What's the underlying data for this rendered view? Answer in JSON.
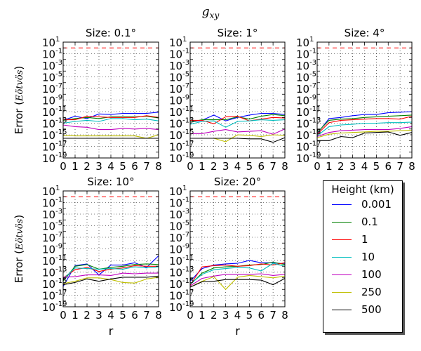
{
  "figure_title": "g_xy",
  "ylabel_text": "Error (",
  "ylabel_unit": "Eötvös",
  "ylabel_close": ")",
  "legend": {
    "title": "Height (km)",
    "items": [
      {
        "label": "0.001",
        "color": "#0000ff"
      },
      {
        "label": "0.1",
        "color": "#008000"
      },
      {
        "label": "1",
        "color": "#ff0000"
      },
      {
        "label": "10",
        "color": "#00bfbf"
      },
      {
        "label": "100",
        "color": "#bf00bf"
      },
      {
        "label": "250",
        "color": "#bfbf00"
      },
      {
        "label": "500",
        "color": "#000000"
      }
    ]
  },
  "threshold": {
    "value": 1,
    "color": "#ff0000",
    "style": "dashed"
  },
  "chart_data": [
    {
      "type": "line",
      "title": "Size: 0.1°",
      "xlabel": "",
      "ylabel": "Error (Eötvös)",
      "x": [
        0,
        1,
        2,
        3,
        4,
        5,
        6,
        7,
        8
      ],
      "xlim": [
        0,
        8
      ],
      "ylim_exp": [
        -19,
        1
      ],
      "yscale": "log",
      "grid": true,
      "series": [
        {
          "name": "0.001",
          "log10": [
            -12.5,
            -11.8,
            -12.2,
            -11.4,
            -11.5,
            -11.3,
            -11.3,
            -11.3,
            -11.1
          ]
        },
        {
          "name": "0.1",
          "log10": [
            -12.5,
            -12.2,
            -12.0,
            -12.2,
            -11.9,
            -11.9,
            -11.9,
            -11.8,
            -12.1
          ]
        },
        {
          "name": "1",
          "log10": [
            -12.4,
            -12.4,
            -11.8,
            -11.9,
            -12.0,
            -12.0,
            -12.0,
            -11.7,
            -12.0
          ]
        },
        {
          "name": "10",
          "log10": [
            -13.0,
            -12.7,
            -12.5,
            -12.7,
            -12.2,
            -12.2,
            -12.4,
            -12.3,
            -12.6
          ]
        },
        {
          "name": "100",
          "log10": [
            -13.3,
            -13.6,
            -13.7,
            -14.1,
            -14.1,
            -13.9,
            -14.0,
            -13.9,
            -14.1
          ]
        },
        {
          "name": "250",
          "log10": [
            -15.1,
            -15.2,
            -15.2,
            -15.2,
            -15.2,
            -15.2,
            -15.2,
            -15.6,
            -15.0
          ]
        },
        {
          "name": "500",
          "log10": [
            -15.6,
            -15.6,
            -15.6,
            -15.6,
            -15.6,
            -15.6,
            -15.6,
            -15.6,
            -15.6
          ]
        }
      ]
    },
    {
      "type": "line",
      "title": "Size: 1°",
      "xlabel": "",
      "ylabel": "",
      "x": [
        0,
        1,
        2,
        3,
        4,
        5,
        6,
        7,
        8
      ],
      "xlim": [
        0,
        8
      ],
      "ylim_exp": [
        -19,
        1
      ],
      "yscale": "log",
      "grid": true,
      "series": [
        {
          "name": "0.001",
          "log10": [
            -12.8,
            -12.5,
            -11.6,
            -12.6,
            -12.0,
            -11.6,
            -11.3,
            -11.3,
            -11.5
          ]
        },
        {
          "name": "0.1",
          "log10": [
            -12.8,
            -12.4,
            -12.4,
            -12.4,
            -11.9,
            -12.3,
            -11.8,
            -11.5,
            -11.7
          ]
        },
        {
          "name": "1",
          "log10": [
            -12.5,
            -12.5,
            -13.1,
            -11.9,
            -11.8,
            -12.6,
            -12.3,
            -12.0,
            -12.1
          ]
        },
        {
          "name": "10",
          "log10": [
            -13.2,
            -12.7,
            -12.6,
            -13.7,
            -12.7,
            -12.6,
            -12.4,
            -12.5,
            -12.4
          ]
        },
        {
          "name": "100",
          "log10": [
            -14.8,
            -14.8,
            -14.4,
            -14.1,
            -14.5,
            -14.4,
            -14.3,
            -14.9,
            -14.0
          ]
        },
        {
          "name": "250",
          "log10": [
            -15.6,
            -15.6,
            -15.6,
            -16.2,
            -15.0,
            -15.1,
            -15.3,
            -15.0,
            -15.1
          ]
        },
        {
          "name": "500",
          "log10": [
            -15.6,
            -15.6,
            -15.6,
            -15.6,
            -15.6,
            -15.7,
            -15.7,
            -16.3,
            -15.5
          ]
        }
      ]
    },
    {
      "type": "line",
      "title": "Size: 4°",
      "xlabel": "",
      "ylabel": "",
      "x": [
        0,
        1,
        2,
        3,
        4,
        5,
        6,
        7,
        8
      ],
      "xlim": [
        0,
        8
      ],
      "ylim_exp": [
        -19,
        1
      ],
      "yscale": "log",
      "grid": true,
      "series": [
        {
          "name": "0.001",
          "log10": [
            -14.8,
            -12.2,
            -12.0,
            -11.7,
            -11.5,
            -11.5,
            -11.2,
            -11.1,
            -11.0
          ]
        },
        {
          "name": "0.1",
          "log10": [
            -14.6,
            -12.5,
            -12.3,
            -12.2,
            -12.0,
            -11.9,
            -11.8,
            -11.7,
            -11.6
          ]
        },
        {
          "name": "1",
          "log10": [
            -14.9,
            -12.9,
            -12.5,
            -12.4,
            -12.3,
            -12.2,
            -12.2,
            -12.3,
            -11.8
          ]
        },
        {
          "name": "10",
          "log10": [
            -15.2,
            -13.6,
            -13.3,
            -13.2,
            -13.0,
            -13.0,
            -12.9,
            -12.9,
            -12.8
          ]
        },
        {
          "name": "100",
          "log10": [
            -15.3,
            -14.6,
            -14.3,
            -14.2,
            -14.1,
            -14.1,
            -14.1,
            -13.9,
            -13.6
          ]
        },
        {
          "name": "250",
          "log10": [
            -15.5,
            -14.9,
            -14.7,
            -14.6,
            -14.5,
            -14.4,
            -14.4,
            -14.3,
            -14.2
          ]
        },
        {
          "name": "500",
          "log10": [
            -16.0,
            -16.0,
            -15.3,
            -15.5,
            -14.7,
            -14.6,
            -14.5,
            -15.1,
            -14.6
          ]
        }
      ]
    },
    {
      "type": "line",
      "title": "Size: 10°",
      "xlabel": "r",
      "ylabel": "Error (Eötvös)",
      "x": [
        0,
        1,
        2,
        3,
        4,
        5,
        6,
        7,
        8
      ],
      "xlim": [
        0,
        8
      ],
      "ylim_exp": [
        -19,
        1
      ],
      "yscale": "log",
      "grid": true,
      "series": [
        {
          "name": "0.001",
          "log10": [
            -15.5,
            -11.9,
            -11.6,
            -13.5,
            -11.8,
            -11.8,
            -11.4,
            -12.2,
            -10.2
          ]
        },
        {
          "name": "0.1",
          "log10": [
            -14.6,
            -12.0,
            -11.7,
            -12.5,
            -12.2,
            -12.0,
            -11.7,
            -11.6,
            -11.7
          ]
        },
        {
          "name": "1",
          "log10": [
            -14.0,
            -12.6,
            -12.2,
            -12.9,
            -12.5,
            -12.3,
            -11.9,
            -12.0,
            -12.0
          ]
        },
        {
          "name": "10",
          "log10": [
            -14.2,
            -12.3,
            -12.4,
            -12.5,
            -12.4,
            -12.5,
            -12.1,
            -12.3,
            -12.1
          ]
        },
        {
          "name": "100",
          "log10": [
            -13.9,
            -13.8,
            -13.5,
            -13.5,
            -13.6,
            -13.2,
            -13.3,
            -13.2,
            -13.2
          ]
        },
        {
          "name": "250",
          "log10": [
            -15.0,
            -14.6,
            -14.0,
            -14.0,
            -14.3,
            -14.8,
            -14.9,
            -14.2,
            -13.9
          ]
        },
        {
          "name": "500",
          "log10": [
            -15.2,
            -14.8,
            -14.2,
            -14.6,
            -14.2,
            -13.9,
            -13.9,
            -13.9,
            -13.7
          ]
        }
      ]
    },
    {
      "type": "line",
      "title": "Size: 20°",
      "xlabel": "r",
      "ylabel": "",
      "x": [
        0,
        1,
        2,
        3,
        4,
        5,
        6,
        7,
        8
      ],
      "xlim": [
        0,
        8
      ],
      "ylim_exp": [
        -19,
        1
      ],
      "yscale": "log",
      "grid": true,
      "series": [
        {
          "name": "0.001",
          "log10": [
            -14.6,
            -12.4,
            -11.8,
            -11.6,
            -11.5,
            -11.0,
            -11.4,
            -11.4,
            -11.6
          ]
        },
        {
          "name": "0.1",
          "log10": [
            -15.2,
            -13.2,
            -12.3,
            -12.1,
            -12.0,
            -11.8,
            -11.7,
            -11.3,
            -11.7
          ]
        },
        {
          "name": "1",
          "log10": [
            -15.3,
            -12.1,
            -11.9,
            -11.8,
            -12.0,
            -11.9,
            -11.6,
            -11.8,
            -11.4
          ]
        },
        {
          "name": "10",
          "log10": [
            -15.1,
            -13.4,
            -12.6,
            -12.4,
            -12.2,
            -12.3,
            -12.8,
            -11.5,
            -12.0
          ]
        },
        {
          "name": "100",
          "log10": [
            -15.4,
            -14.1,
            -13.7,
            -13.4,
            -13.4,
            -13.4,
            -13.3,
            -13.6,
            -13.4
          ]
        },
        {
          "name": "250",
          "log10": [
            -15.6,
            -14.6,
            -13.8,
            -16.0,
            -13.9,
            -13.6,
            -13.8,
            -14.0,
            -13.7
          ]
        },
        {
          "name": "500",
          "log10": [
            -15.6,
            -14.7,
            -14.6,
            -14.3,
            -14.3,
            -14.3,
            -14.4,
            -15.2,
            -14.1
          ]
        }
      ]
    }
  ]
}
